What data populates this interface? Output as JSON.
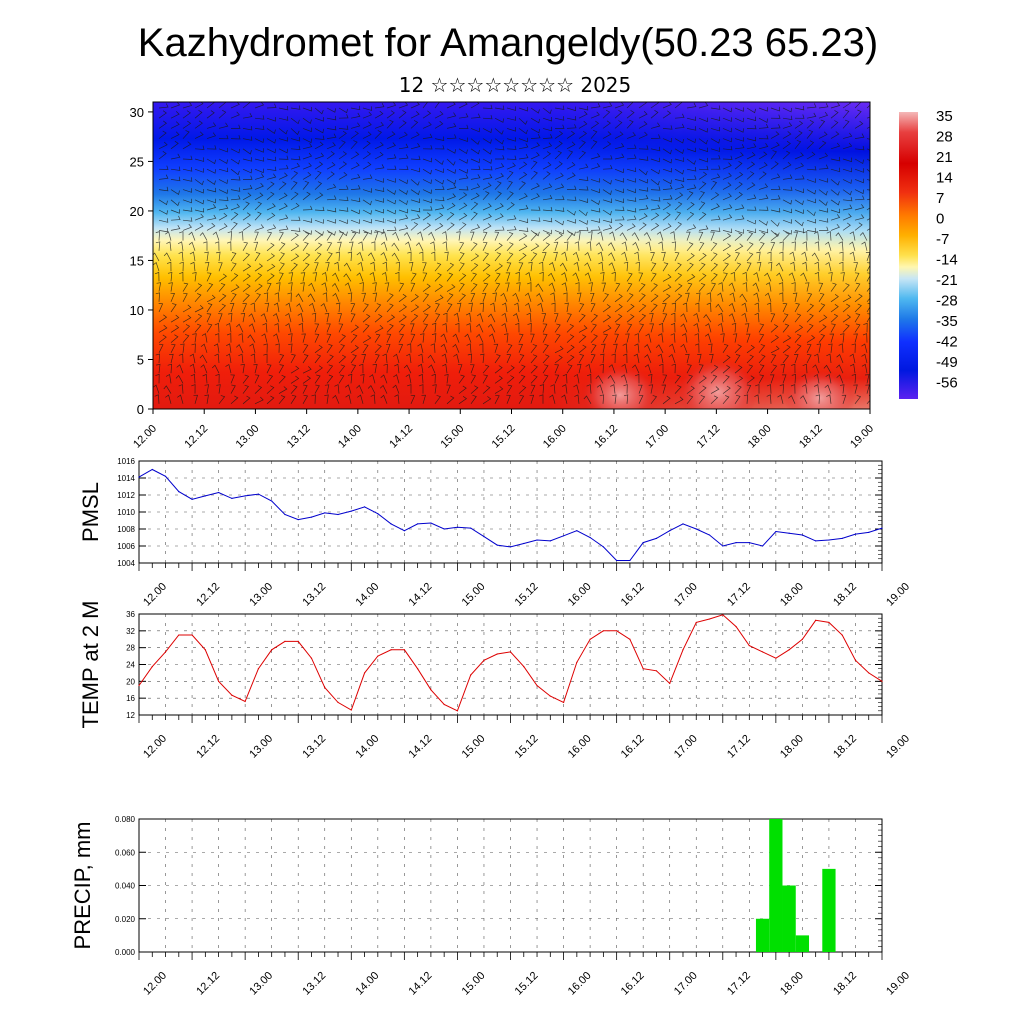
{
  "title": "Kazhydromet for Amangeldy(50.23 65.23)",
  "subtitle": "12 ☆☆☆☆☆☆☆☆ 2025",
  "time_ticks": [
    "12.00",
    "12.12",
    "13.00",
    "13.12",
    "14.00",
    "14.12",
    "15.00",
    "15.12",
    "16.00",
    "16.12",
    "17.00",
    "17.12",
    "18.00",
    "18.12",
    "19.00"
  ],
  "chart_data": [
    {
      "type": "heatmap",
      "title": "",
      "ylim": [
        0,
        31
      ],
      "y_ticks": [
        0,
        5,
        10,
        15,
        20,
        25,
        30
      ],
      "x_ticks": [
        "12.00",
        "12.12",
        "13.00",
        "13.12",
        "14.00",
        "14.12",
        "15.00",
        "15.12",
        "16.00",
        "16.12",
        "17.00",
        "17.12",
        "18.00",
        "18.12",
        "19.00"
      ],
      "colorbar_labels": [
        "35",
        "28",
        "21",
        "14",
        "7",
        "0",
        "-7",
        "-14",
        "-21",
        "-28",
        "-35",
        "-42",
        "-49",
        "-56"
      ],
      "colorscale": [
        "#f4b8b8",
        "#e84040",
        "#d60000",
        "#f03010",
        "#ff7a00",
        "#ffb000",
        "#ffe14d",
        "#fff7b0",
        "#c8e6f5",
        "#4fb8f0",
        "#1f7ae8",
        "#1030ff",
        "#0018e0",
        "#5b22f0"
      ],
      "level_temperature_profile": [
        {
          "level": 0,
          "value": 28
        },
        {
          "level": 5,
          "value": 20
        },
        {
          "level": 10,
          "value": 7
        },
        {
          "level": 15,
          "value": -10
        },
        {
          "level": 20,
          "value": -35
        },
        {
          "level": 25,
          "value": -50
        },
        {
          "level": 30,
          "value": -56
        }
      ],
      "overlay": "wind barbs"
    },
    {
      "type": "line",
      "ylabel": "PMSL",
      "ylim": [
        1004,
        1016
      ],
      "y_ticks": [
        1004,
        1006,
        1008,
        1010,
        1012,
        1014,
        1016
      ],
      "color": "#0000cc",
      "x": [
        0,
        3,
        6,
        9,
        12,
        15,
        18,
        21,
        24,
        27,
        30,
        33,
        36,
        39,
        42,
        45,
        48,
        51,
        54,
        57,
        60,
        63,
        66,
        69,
        72,
        75,
        78,
        81,
        84,
        87,
        90,
        93,
        96,
        99,
        102,
        105,
        108,
        111,
        114,
        117,
        120,
        123,
        126,
        129,
        132,
        135,
        138,
        141,
        144,
        147,
        150,
        153,
        156,
        159,
        162,
        165,
        168
      ],
      "values": [
        1014.1,
        1015.0,
        1014.2,
        1012.4,
        1011.5,
        1011.9,
        1012.3,
        1011.6,
        1011.9,
        1012.1,
        1011.3,
        1009.7,
        1009.1,
        1009.4,
        1009.9,
        1009.7,
        1010.1,
        1010.6,
        1009.8,
        1008.6,
        1007.8,
        1008.6,
        1008.7,
        1008.0,
        1008.2,
        1008.1,
        1007.1,
        1006.1,
        1005.9,
        1006.3,
        1006.7,
        1006.6,
        1007.2,
        1007.8,
        1007.0,
        1005.9,
        1004.3,
        1004.3,
        1006.4,
        1006.9,
        1007.8,
        1008.6,
        1008.0,
        1007.3,
        1006.0,
        1006.4,
        1006.4,
        1006.0,
        1007.7,
        1007.5,
        1007.3,
        1006.6,
        1006.7,
        1006.9,
        1007.4,
        1007.6,
        1008.1
      ]
    },
    {
      "type": "line",
      "ylabel": "TEMP at 2 M",
      "ylim": [
        12,
        36
      ],
      "y_ticks": [
        12,
        16,
        20,
        24,
        28,
        32,
        36
      ],
      "color": "#dd0000",
      "x": [
        0,
        3,
        6,
        9,
        12,
        15,
        18,
        21,
        24,
        27,
        30,
        33,
        36,
        39,
        42,
        45,
        48,
        51,
        54,
        57,
        60,
        63,
        66,
        69,
        72,
        75,
        78,
        81,
        84,
        87,
        90,
        93,
        96,
        99,
        102,
        105,
        108,
        111,
        114,
        117,
        120,
        123,
        126,
        129,
        132,
        135,
        138,
        141,
        144,
        147,
        150,
        153,
        156,
        159,
        162,
        165,
        168
      ],
      "values": [
        19,
        23.5,
        27,
        31,
        31,
        27.5,
        20,
        16.7,
        15.2,
        23,
        27.5,
        29.5,
        29.5,
        25.5,
        18.5,
        15,
        13.2,
        22,
        26,
        27.5,
        27.5,
        23,
        18,
        14.5,
        13,
        21.5,
        25,
        26.5,
        27,
        23.5,
        19,
        16.5,
        15,
        24.5,
        30,
        32,
        32,
        30,
        23,
        22.5,
        19.5,
        27.5,
        34,
        34.8,
        35.8,
        33,
        28.5,
        27,
        25.5,
        27.5,
        30,
        34.5,
        34,
        31,
        25,
        22,
        20
      ]
    },
    {
      "type": "bar",
      "ylabel": "PRECIP, mm",
      "ylim": [
        0,
        0.08
      ],
      "y_ticks": [
        "0.000",
        "0.020",
        "0.040",
        "0.060",
        "0.080"
      ],
      "color": "#00e000",
      "bars": [
        {
          "x": 141,
          "value": 0.02
        },
        {
          "x": 144,
          "value": 0.08
        },
        {
          "x": 147,
          "value": 0.04
        },
        {
          "x": 150,
          "value": 0.01
        },
        {
          "x": 156,
          "value": 0.05
        }
      ]
    }
  ]
}
